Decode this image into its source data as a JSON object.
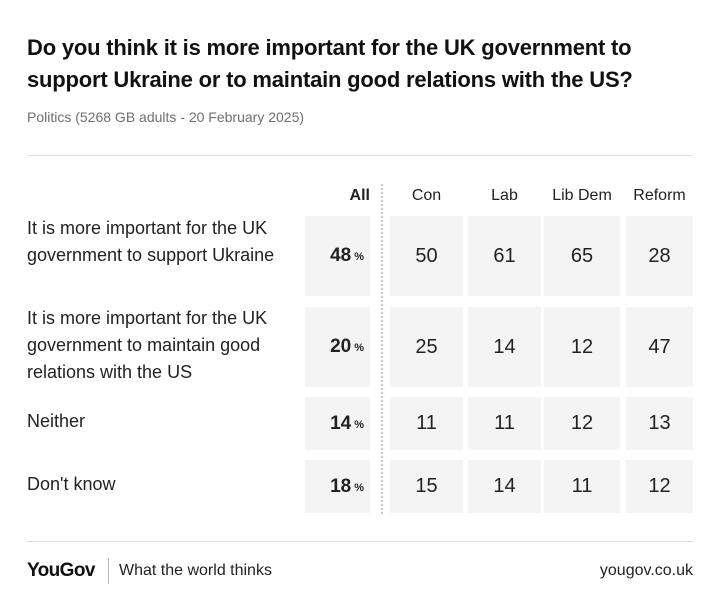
{
  "title": "Do you think it is more important for the UK government to support Ukraine or to maintain good relations with the US?",
  "subtitle": "Politics (5268 GB adults - 20 February 2025)",
  "footer": {
    "logo": "YouGov",
    "tagline": "What the world thinks",
    "site": "yougov.co.uk"
  },
  "chart_data": {
    "type": "table",
    "title": "Do you think it is more important for the UK government to support Ukraine or to maintain good relations with the US?",
    "subtitle": "Politics (5268 GB adults - 20 February 2025)",
    "columns": [
      "All",
      "Con",
      "Lab",
      "Lib Dem",
      "Reform"
    ],
    "unit": "%",
    "rows": [
      {
        "label": "It is more important for the UK government to support Ukraine",
        "values": [
          48,
          50,
          61,
          65,
          28
        ]
      },
      {
        "label": "It is more important for the UK government to maintain good relations with the US",
        "values": [
          20,
          25,
          14,
          12,
          47
        ]
      },
      {
        "label": "Neither",
        "values": [
          14,
          11,
          11,
          12,
          13
        ]
      },
      {
        "label": "Don't know",
        "values": [
          18,
          15,
          14,
          11,
          12
        ]
      }
    ]
  }
}
